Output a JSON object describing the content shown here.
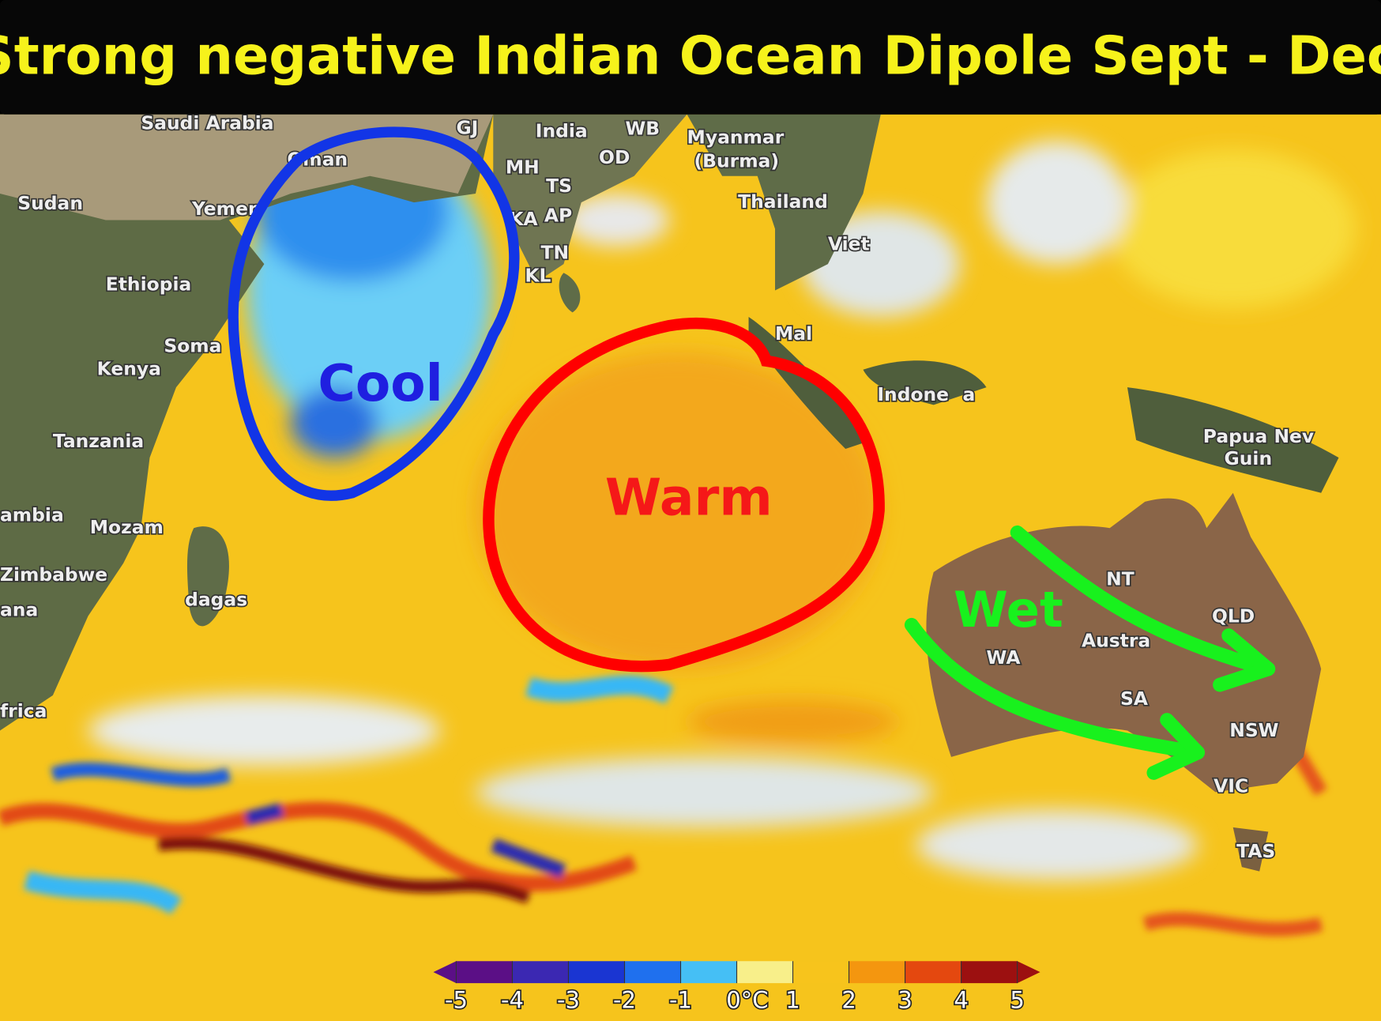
{
  "title": "Strong negative Indian Ocean Dipole Sept - Dec",
  "annotations": {
    "cool": "Cool",
    "warm": "Warm",
    "wet": "Wet"
  },
  "places": [
    "Saudi Arabia",
    "Sudan",
    "Yemen",
    "Oman",
    "Ethiopia",
    "Soma",
    "Kenya",
    "Tanzania",
    "ambia",
    "Mozam",
    "Zimbabwe",
    "ana",
    "frica",
    "dagas",
    "India",
    "GJ",
    "MH",
    "TS",
    "KA",
    "AP",
    "TN",
    "KL",
    "WB",
    "OD",
    "Myanmar",
    "(Burma)",
    "Thailand",
    "Viet",
    "Mal",
    "Indone",
    "a",
    "Papua Nev",
    "Guin",
    "NT",
    "QLD",
    "WA",
    "Austra",
    "SA",
    "NSW",
    "VIC",
    "TAS"
  ],
  "colorbar": {
    "range": [
      -5,
      5
    ],
    "ticks": [
      -5,
      -4,
      -3,
      -2,
      -1,
      {
        "value": 0,
        "label": "0°C"
      },
      1,
      2,
      3,
      4,
      5
    ],
    "colors": [
      "#5b0f86",
      "#3b28b2",
      "#1a35d2",
      "#1f70ee",
      "#45bff5",
      "#f8ef8a",
      "#f7c41c",
      "#f4960f",
      "#e4480f",
      "#9c1010"
    ]
  }
}
